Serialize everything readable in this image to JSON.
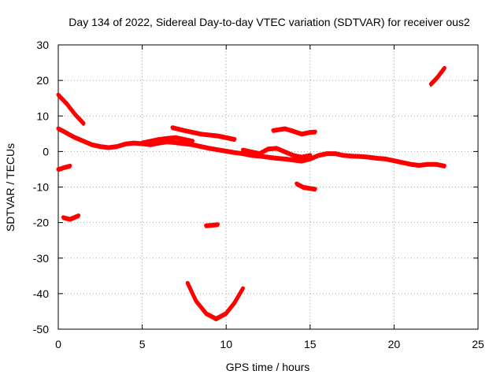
{
  "chart_data": {
    "type": "line",
    "title": "Day 134 of 2022, Sidereal Day-to-day VTEC variation (SDTVAR) for receiver ous2",
    "xlabel": "GPS time / hours",
    "ylabel": "SDTVAR / TECUs",
    "xlim": [
      0,
      25
    ],
    "ylim": [
      -50,
      30
    ],
    "xticks": [
      0,
      5,
      10,
      15,
      20,
      25
    ],
    "yticks": [
      -50,
      -40,
      -30,
      -20,
      -10,
      0,
      10,
      20,
      30
    ],
    "grid": true,
    "legend": "none",
    "series_color": "#ff0000",
    "series": [
      {
        "name": "main-trace",
        "x": [
          0.0,
          0.3,
          0.6,
          1.0,
          1.5,
          2.0,
          2.5,
          3.0,
          3.5,
          4.0,
          4.5,
          5.0,
          5.5,
          6.0,
          6.5,
          7.0,
          7.5,
          8.0,
          8.5,
          9.0,
          9.5,
          10.0,
          10.5,
          11.0,
          11.5,
          12.0,
          12.5,
          13.0,
          13.5,
          14.0,
          14.5,
          15.0,
          15.5,
          16.0,
          16.5,
          17.0,
          17.5,
          18.0,
          18.5,
          19.0,
          19.5,
          20.0,
          20.5,
          21.0,
          21.5,
          22.0,
          22.5,
          23.0
        ],
        "y": [
          6.5,
          5.8,
          5.0,
          4.0,
          3.0,
          2.0,
          1.5,
          1.2,
          1.5,
          2.2,
          2.5,
          2.3,
          2.0,
          2.5,
          2.8,
          2.6,
          2.3,
          2.0,
          1.5,
          1.0,
          0.6,
          0.2,
          -0.2,
          -0.5,
          -1.0,
          -1.2,
          -1.5,
          -1.8,
          -2.0,
          -2.3,
          -2.6,
          -2.0,
          -1.0,
          -0.5,
          -0.5,
          -1.0,
          -1.2,
          -1.3,
          -1.5,
          -1.8,
          -2.0,
          -2.5,
          -3.0,
          -3.5,
          -3.8,
          -3.5,
          -3.5,
          -4.0
        ]
      },
      {
        "name": "upper-band",
        "x": [
          5.0,
          5.5,
          6.0,
          6.5,
          7.0,
          7.5,
          8.0
        ],
        "y": [
          2.5,
          3.0,
          3.5,
          3.8,
          4.0,
          3.5,
          3.0
        ]
      },
      {
        "name": "offset-band",
        "x": [
          11.0,
          11.5,
          12.0,
          12.5,
          13.0,
          13.5,
          14.0,
          14.5,
          15.0
        ],
        "y": [
          0.5,
          0.0,
          -0.5,
          0.8,
          1.0,
          0.0,
          -1.0,
          -1.5,
          -1.0
        ]
      },
      {
        "name": "hump",
        "x": [
          6.8,
          7.5,
          8.5,
          9.5,
          10.5
        ],
        "y": [
          6.8,
          6.0,
          5.0,
          4.5,
          3.5
        ]
      },
      {
        "name": "bump",
        "x": [
          12.8,
          13.5,
          14.0,
          14.5,
          15.0,
          15.3
        ],
        "y": [
          6.0,
          6.5,
          5.8,
          5.0,
          5.5,
          5.6
        ]
      },
      {
        "name": "descending-start",
        "x": [
          0.0,
          0.5,
          1.0,
          1.5
        ],
        "y": [
          16.0,
          13.5,
          10.5,
          8.0
        ]
      },
      {
        "name": "short-dip",
        "x": [
          0.0,
          0.3,
          0.7
        ],
        "y": [
          -5.0,
          -4.5,
          -4.0
        ]
      },
      {
        "name": "low-segment",
        "x": [
          0.3,
          0.7,
          1.2
        ],
        "y": [
          -18.5,
          -19.0,
          -18.0
        ]
      },
      {
        "name": "small-fragment",
        "x": [
          8.8,
          9.5
        ],
        "y": [
          -20.8,
          -20.5
        ]
      },
      {
        "name": "deep-curve",
        "x": [
          7.7,
          8.2,
          8.8,
          9.4,
          10.0,
          10.5,
          11.0
        ],
        "y": [
          -37.0,
          -42.0,
          -45.5,
          -47.0,
          -45.5,
          -42.5,
          -38.5
        ]
      },
      {
        "name": "lower-fragment",
        "x": [
          14.2,
          14.6,
          15.0,
          15.3
        ],
        "y": [
          -9.0,
          -10.0,
          -10.3,
          -10.5
        ]
      },
      {
        "name": "rising-end",
        "x": [
          22.2,
          22.6,
          23.0
        ],
        "y": [
          19.0,
          21.0,
          23.5
        ]
      }
    ]
  }
}
